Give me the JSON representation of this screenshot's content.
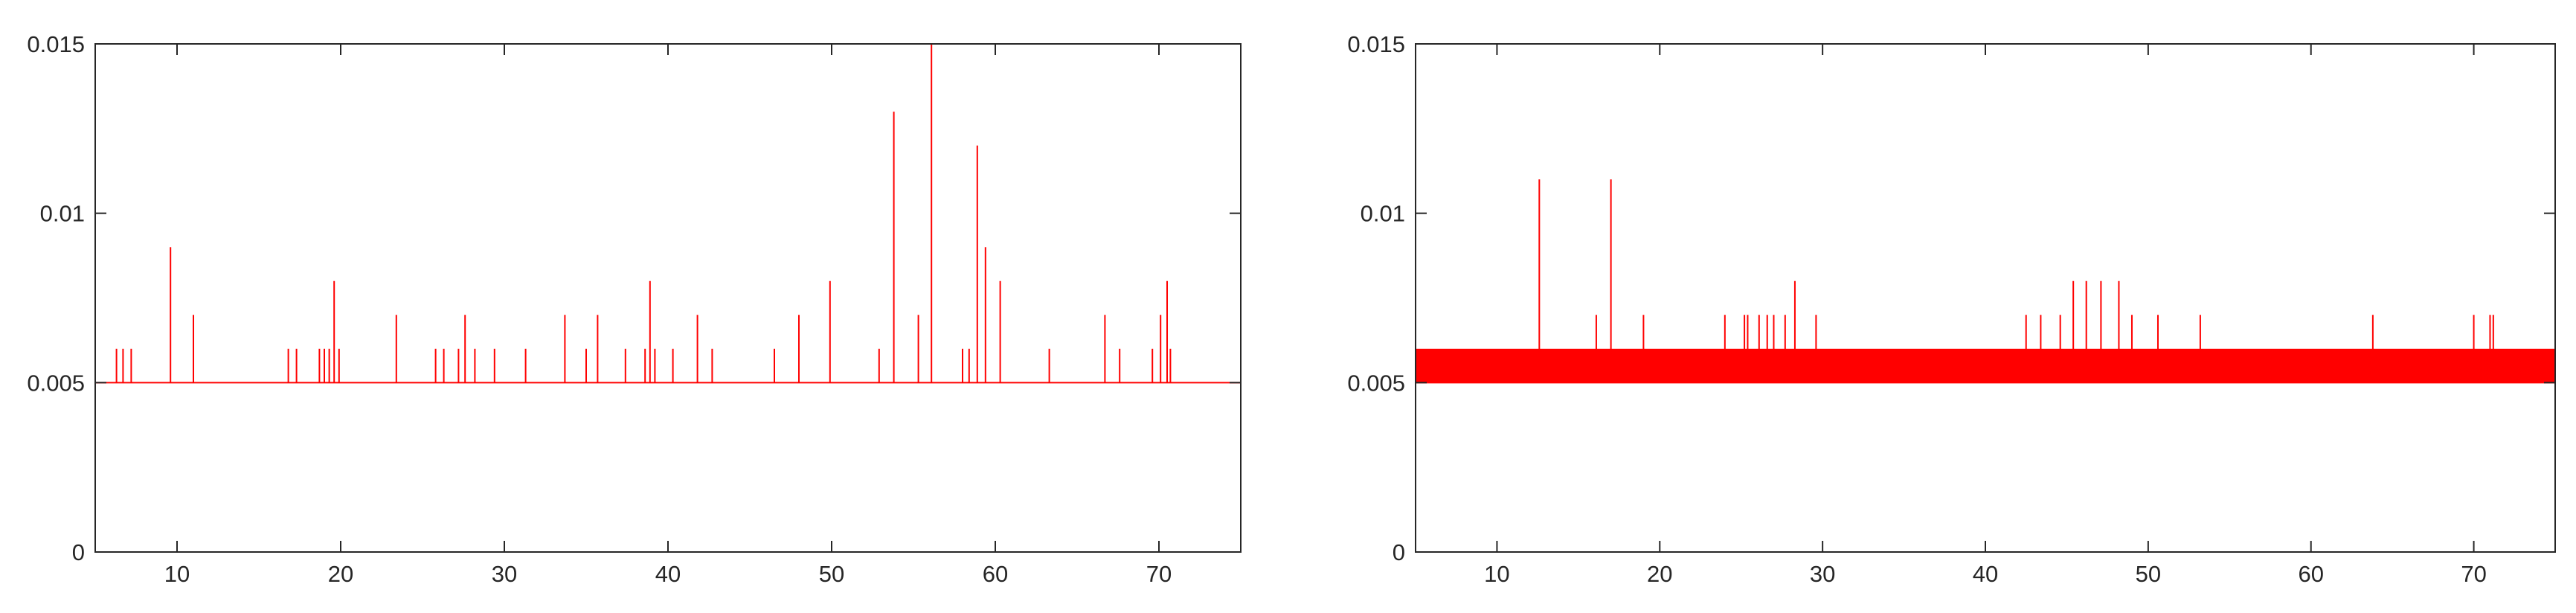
{
  "chart_data": [
    {
      "type": "line",
      "title": "",
      "xlabel": "",
      "ylabel": "",
      "xlim": [
        5,
        75
      ],
      "ylim": [
        0,
        0.015
      ],
      "xticks": [
        10,
        20,
        30,
        40,
        50,
        60,
        70
      ],
      "yticks": [
        0,
        0.005,
        0.01,
        0.015
      ],
      "xtick_labels": [
        "10",
        "20",
        "30",
        "40",
        "50",
        "60",
        "70"
      ],
      "ytick_labels": [
        "0",
        "0.005",
        "0.01",
        "0.015"
      ],
      "grid": false,
      "series": [
        {
          "color": "#ff0000",
          "baseline": 0.005,
          "noise_band": null,
          "spikes": [
            {
              "x": 6.3,
              "y": 0.006
            },
            {
              "x": 6.7,
              "y": 0.006
            },
            {
              "x": 7.2,
              "y": 0.006
            },
            {
              "x": 9.6,
              "y": 0.009
            },
            {
              "x": 11.0,
              "y": 0.007
            },
            {
              "x": 16.8,
              "y": 0.006
            },
            {
              "x": 17.3,
              "y": 0.006
            },
            {
              "x": 18.7,
              "y": 0.006
            },
            {
              "x": 19.0,
              "y": 0.006
            },
            {
              "x": 19.3,
              "y": 0.006
            },
            {
              "x": 19.6,
              "y": 0.008
            },
            {
              "x": 19.9,
              "y": 0.006
            },
            {
              "x": 23.4,
              "y": 0.007
            },
            {
              "x": 25.8,
              "y": 0.006
            },
            {
              "x": 26.3,
              "y": 0.006
            },
            {
              "x": 27.2,
              "y": 0.006
            },
            {
              "x": 27.6,
              "y": 0.007
            },
            {
              "x": 28.2,
              "y": 0.006
            },
            {
              "x": 29.4,
              "y": 0.006
            },
            {
              "x": 31.3,
              "y": 0.006
            },
            {
              "x": 33.7,
              "y": 0.007
            },
            {
              "x": 35.0,
              "y": 0.006
            },
            {
              "x": 35.7,
              "y": 0.007
            },
            {
              "x": 37.4,
              "y": 0.006
            },
            {
              "x": 38.6,
              "y": 0.006
            },
            {
              "x": 38.9,
              "y": 0.008
            },
            {
              "x": 39.2,
              "y": 0.006
            },
            {
              "x": 40.3,
              "y": 0.006
            },
            {
              "x": 41.8,
              "y": 0.007
            },
            {
              "x": 42.7,
              "y": 0.006
            },
            {
              "x": 46.5,
              "y": 0.006
            },
            {
              "x": 48.0,
              "y": 0.007
            },
            {
              "x": 49.9,
              "y": 0.008
            },
            {
              "x": 52.9,
              "y": 0.006
            },
            {
              "x": 53.8,
              "y": 0.013
            },
            {
              "x": 55.3,
              "y": 0.007
            },
            {
              "x": 56.1,
              "y": 0.015
            },
            {
              "x": 58.0,
              "y": 0.006
            },
            {
              "x": 58.4,
              "y": 0.006
            },
            {
              "x": 58.9,
              "y": 0.012
            },
            {
              "x": 59.4,
              "y": 0.009
            },
            {
              "x": 60.3,
              "y": 0.008
            },
            {
              "x": 63.3,
              "y": 0.006
            },
            {
              "x": 66.7,
              "y": 0.007
            },
            {
              "x": 67.6,
              "y": 0.006
            },
            {
              "x": 69.6,
              "y": 0.006
            },
            {
              "x": 70.1,
              "y": 0.007
            },
            {
              "x": 70.5,
              "y": 0.008
            },
            {
              "x": 70.7,
              "y": 0.006
            }
          ]
        }
      ]
    },
    {
      "type": "line",
      "title": "",
      "xlabel": "",
      "ylabel": "",
      "xlim": [
        5,
        75
      ],
      "ylim": [
        0,
        0.015
      ],
      "xticks": [
        10,
        20,
        30,
        40,
        50,
        60,
        70
      ],
      "yticks": [
        0,
        0.005,
        0.01,
        0.015
      ],
      "xtick_labels": [
        "10",
        "20",
        "30",
        "40",
        "50",
        "60",
        "70"
      ],
      "ytick_labels": [
        "0",
        "0.005",
        "0.01",
        "0.015"
      ],
      "grid": false,
      "series": [
        {
          "color": "#ff0000",
          "baseline": 0.005,
          "noise_band": [
            0.005,
            0.006
          ],
          "spikes": [
            {
              "x": 12.6,
              "y": 0.011
            },
            {
              "x": 16.1,
              "y": 0.007
            },
            {
              "x": 17.0,
              "y": 0.011
            },
            {
              "x": 19.0,
              "y": 0.007
            },
            {
              "x": 24.0,
              "y": 0.007
            },
            {
              "x": 25.2,
              "y": 0.007
            },
            {
              "x": 25.4,
              "y": 0.007
            },
            {
              "x": 26.1,
              "y": 0.007
            },
            {
              "x": 26.6,
              "y": 0.007
            },
            {
              "x": 27.0,
              "y": 0.007
            },
            {
              "x": 27.7,
              "y": 0.007
            },
            {
              "x": 28.3,
              "y": 0.008
            },
            {
              "x": 29.6,
              "y": 0.007
            },
            {
              "x": 42.5,
              "y": 0.007
            },
            {
              "x": 43.4,
              "y": 0.007
            },
            {
              "x": 44.6,
              "y": 0.007
            },
            {
              "x": 45.4,
              "y": 0.008
            },
            {
              "x": 46.2,
              "y": 0.008
            },
            {
              "x": 47.1,
              "y": 0.008
            },
            {
              "x": 48.2,
              "y": 0.008
            },
            {
              "x": 49.0,
              "y": 0.007
            },
            {
              "x": 50.6,
              "y": 0.007
            },
            {
              "x": 53.2,
              "y": 0.007
            },
            {
              "x": 63.8,
              "y": 0.007
            },
            {
              "x": 70.0,
              "y": 0.007
            },
            {
              "x": 71.0,
              "y": 0.007
            },
            {
              "x": 71.2,
              "y": 0.007
            },
            {
              "x": 75.0,
              "y": 0.007
            }
          ]
        }
      ]
    }
  ]
}
